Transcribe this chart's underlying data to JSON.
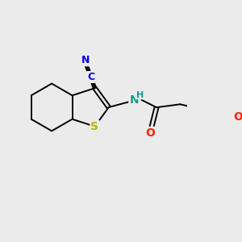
{
  "background_color": "#ebebeb",
  "bond_color": "#000000",
  "atom_colors": {
    "N": "#1a9a8a",
    "S": "#b8b800",
    "O": "#ff2200",
    "C_cyan": "#0000ee",
    "N_cyan": "#0000ee",
    "H": "#1a9a8a"
  },
  "figsize": [
    3.0,
    3.0
  ],
  "dpi": 100,
  "lw": 1.4
}
